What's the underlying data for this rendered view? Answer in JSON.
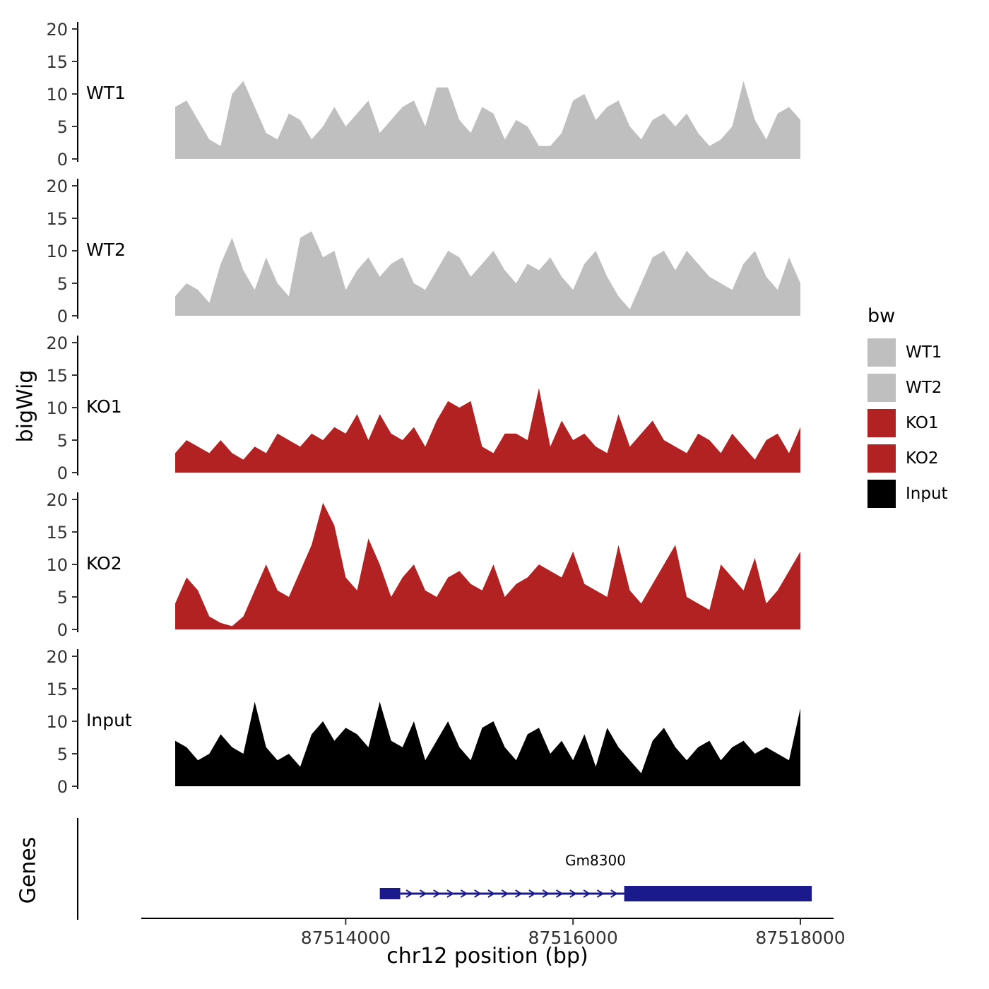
{
  "chart_data": {
    "type": "area",
    "title": "",
    "xlabel": "chr12 position (bp)",
    "ylabel": "bigWig",
    "genes_axis_label": "Genes",
    "x_start": 87512500,
    "x_step": 100,
    "xlim": [
      87512150,
      87518300
    ],
    "ylim": [
      0,
      20
    ],
    "y_ticks": [
      0,
      5,
      10,
      15,
      20
    ],
    "x_ticks": [
      87514000,
      87516000,
      87518000
    ],
    "grid": false,
    "legend_position": "right",
    "series": [
      {
        "name": "WT1",
        "color": "#bfbfbf",
        "values": [
          8,
          9,
          6,
          3,
          2,
          10,
          12,
          8,
          4,
          3,
          7,
          6,
          3,
          5,
          8,
          5,
          7,
          9,
          4,
          6,
          8,
          9,
          5,
          11,
          11,
          6,
          4,
          8,
          7,
          3,
          6,
          5,
          2,
          2,
          4,
          9,
          10,
          6,
          8,
          9,
          5,
          3,
          6,
          7,
          5,
          7,
          4,
          2,
          3,
          5,
          12,
          6,
          3,
          7,
          8,
          6
        ]
      },
      {
        "name": "WT2",
        "color": "#bfbfbf",
        "values": [
          3,
          5,
          4,
          2,
          8,
          12,
          7,
          4,
          9,
          5,
          3,
          12,
          13,
          9,
          10,
          4,
          7,
          9,
          6,
          8,
          9,
          5,
          4,
          7,
          10,
          9,
          6,
          8,
          10,
          7,
          5,
          8,
          7,
          9,
          6,
          4,
          8,
          10,
          6,
          3,
          1,
          5,
          9,
          10,
          7,
          10,
          8,
          6,
          5,
          4,
          8,
          10,
          6,
          4,
          9,
          5
        ]
      },
      {
        "name": "KO1",
        "color": "#b22222",
        "values": [
          3,
          5,
          4,
          3,
          5,
          3,
          2,
          4,
          3,
          6,
          5,
          4,
          6,
          5,
          7,
          6,
          9,
          5,
          9,
          6,
          5,
          7,
          4,
          8,
          11,
          10,
          11,
          4,
          3,
          6,
          6,
          5,
          13,
          4,
          8,
          5,
          6,
          4,
          3,
          9,
          4,
          6,
          8,
          5,
          4,
          3,
          6,
          5,
          3,
          6,
          4,
          2,
          5,
          6,
          3,
          7
        ]
      },
      {
        "name": "KO2",
        "color": "#b22222",
        "values": [
          4,
          8,
          6,
          2,
          1,
          0.5,
          2,
          6,
          10,
          6,
          5,
          9,
          13,
          19.5,
          16,
          8,
          6,
          14,
          10,
          5,
          8,
          10,
          6,
          5,
          8,
          9,
          7,
          6,
          10,
          5,
          7,
          8,
          10,
          9,
          8,
          12,
          7,
          6,
          5,
          13,
          6,
          4,
          7,
          10,
          13,
          5,
          4,
          3,
          10,
          8,
          6,
          11,
          4,
          6,
          9,
          12
        ]
      },
      {
        "name": "Input",
        "color": "#000000",
        "values": [
          7,
          6,
          4,
          5,
          8,
          6,
          5,
          13,
          6,
          4,
          5,
          3,
          8,
          10,
          7,
          9,
          8,
          6,
          13,
          7,
          6,
          10,
          4,
          7,
          10,
          6,
          4,
          9,
          10,
          6,
          4,
          8,
          9,
          5,
          7,
          4,
          8,
          3,
          9,
          6,
          4,
          2,
          7,
          9,
          6,
          4,
          6,
          7,
          4,
          6,
          7,
          5,
          6,
          5,
          4,
          12
        ]
      }
    ],
    "legend": {
      "title": "bw",
      "entries": [
        {
          "label": "WT1",
          "color": "#bfbfbf"
        },
        {
          "label": "WT2",
          "color": "#bfbfbf"
        },
        {
          "label": "KO1",
          "color": "#b22222"
        },
        {
          "label": "KO2",
          "color": "#b22222"
        },
        {
          "label": "Input",
          "color": "#000000"
        }
      ]
    },
    "genes_track": {
      "label": "Genes",
      "gene": {
        "name": "Gm8300",
        "color": "#1a1a8c",
        "strand": "+",
        "small_exon": [
          87514300,
          87514480
        ],
        "intron": [
          87514480,
          87516450
        ],
        "large_exon": [
          87516450,
          87518100
        ]
      }
    }
  }
}
